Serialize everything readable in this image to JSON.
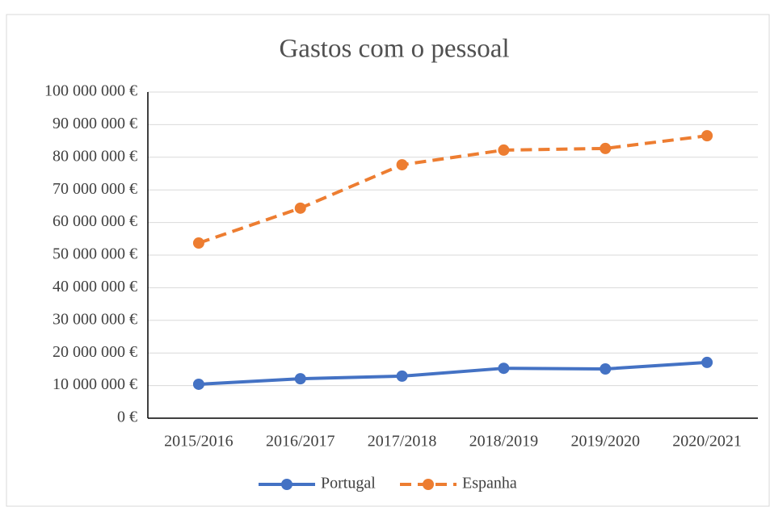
{
  "chart_data": {
    "type": "line",
    "title": "Gastos com o pessoal",
    "categories": [
      "2015/2016",
      "2016/2017",
      "2017/2018",
      "2018/2019",
      "2019/2020",
      "2020/2021"
    ],
    "series": [
      {
        "name": "Portugal",
        "color": "#4472c4",
        "dashed": false,
        "values": [
          10400000,
          12100000,
          12900000,
          15300000,
          15100000,
          17100000
        ]
      },
      {
        "name": "Espanha",
        "color": "#ed7d31",
        "dashed": true,
        "values": [
          53700000,
          64400000,
          77700000,
          82200000,
          82700000,
          86600000
        ]
      }
    ],
    "ylim": [
      0,
      100000000
    ],
    "yticks": [
      {
        "value": 0,
        "label": "0 €"
      },
      {
        "value": 10000000,
        "label": "10 000 000 €"
      },
      {
        "value": 20000000,
        "label": "20 000 000 €"
      },
      {
        "value": 30000000,
        "label": "30 000 000 €"
      },
      {
        "value": 40000000,
        "label": "40 000 000 €"
      },
      {
        "value": 50000000,
        "label": "50 000 000 €"
      },
      {
        "value": 60000000,
        "label": "60 000 000 €"
      },
      {
        "value": 70000000,
        "label": "70 000 000 €"
      },
      {
        "value": 80000000,
        "label": "80 000 000 €"
      },
      {
        "value": 90000000,
        "label": "90 000 000 €"
      },
      {
        "value": 100000000,
        "label": "100 000 000 €"
      }
    ],
    "grid": true,
    "legend": "bottom"
  }
}
